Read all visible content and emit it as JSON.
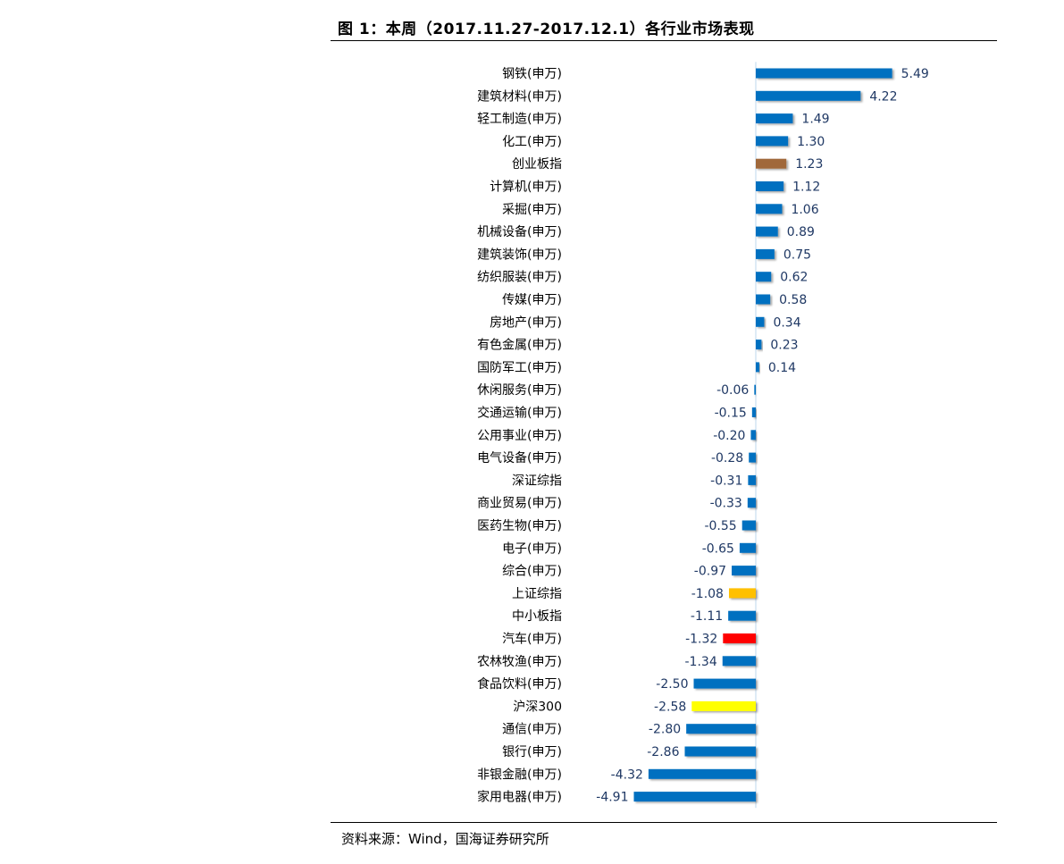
{
  "header": {
    "title": "图 1：本周（2017.11.27-2017.12.1）各行业市场表现"
  },
  "footer": {
    "source": "资料来源：Wind，国海证券研究所"
  },
  "colors": {
    "default_bar": "#0070c0",
    "highlight_brown": "#a0683a",
    "highlight_orange": "#ffc000",
    "highlight_red": "#ff0000",
    "highlight_yellow": "#ffff00",
    "label_text": "#1f3864",
    "axis_line": "#bdd7ee"
  },
  "chart_data": {
    "type": "bar",
    "orientation": "horizontal",
    "title": "",
    "xlabel": "",
    "ylabel": "",
    "data_labels": true,
    "grid": false,
    "legend": "none",
    "xlim": [
      -5.5,
      5.5
    ],
    "categories": [
      "钢铁(申万)",
      "建筑材料(申万)",
      "轻工制造(申万)",
      "化工(申万)",
      "创业板指",
      "计算机(申万)",
      "采掘(申万)",
      "机械设备(申万)",
      "建筑装饰(申万)",
      "纺织服装(申万)",
      "传媒(申万)",
      "房地产(申万)",
      "有色金属(申万)",
      "国防军工(申万)",
      "休闲服务(申万)",
      "交通运输(申万)",
      "公用事业(申万)",
      "电气设备(申万)",
      "深证综指",
      "商业贸易(申万)",
      "医药生物(申万)",
      "电子(申万)",
      "综合(申万)",
      "上证综指",
      "中小板指",
      "汽车(申万)",
      "农林牧渔(申万)",
      "食品饮料(申万)",
      "沪深300",
      "通信(申万)",
      "银行(申万)",
      "非银金融(申万)",
      "家用电器(申万)"
    ],
    "values": [
      5.49,
      4.22,
      1.49,
      1.3,
      1.23,
      1.12,
      1.06,
      0.89,
      0.75,
      0.62,
      0.58,
      0.34,
      0.23,
      0.14,
      -0.06,
      -0.15,
      -0.2,
      -0.28,
      -0.31,
      -0.33,
      -0.55,
      -0.65,
      -0.97,
      -1.08,
      -1.11,
      -1.32,
      -1.34,
      -2.5,
      -2.58,
      -2.8,
      -2.86,
      -4.32,
      -4.91
    ],
    "value_labels": [
      "5.49",
      "4.22",
      "1.49",
      "1.30",
      "1.23",
      "1.12",
      "1.06",
      "0.89",
      "0.75",
      "0.62",
      "0.58",
      "0.34",
      "0.23",
      "0.14",
      "-0.06",
      "-0.15",
      "-0.20",
      "-0.28",
      "-0.31",
      "-0.33",
      "-0.55",
      "-0.65",
      "-0.97",
      "-1.08",
      "-1.11",
      "-1.32",
      "-1.34",
      "-2.50",
      "-2.58",
      "-2.80",
      "-2.86",
      "-4.32",
      "-4.91"
    ],
    "bar_colors": [
      "#0070c0",
      "#0070c0",
      "#0070c0",
      "#0070c0",
      "#a0683a",
      "#0070c0",
      "#0070c0",
      "#0070c0",
      "#0070c0",
      "#0070c0",
      "#0070c0",
      "#0070c0",
      "#0070c0",
      "#0070c0",
      "#0070c0",
      "#0070c0",
      "#0070c0",
      "#0070c0",
      "#0070c0",
      "#0070c0",
      "#0070c0",
      "#0070c0",
      "#0070c0",
      "#ffc000",
      "#0070c0",
      "#ff0000",
      "#0070c0",
      "#0070c0",
      "#ffff00",
      "#0070c0",
      "#0070c0",
      "#0070c0",
      "#0070c0"
    ]
  }
}
